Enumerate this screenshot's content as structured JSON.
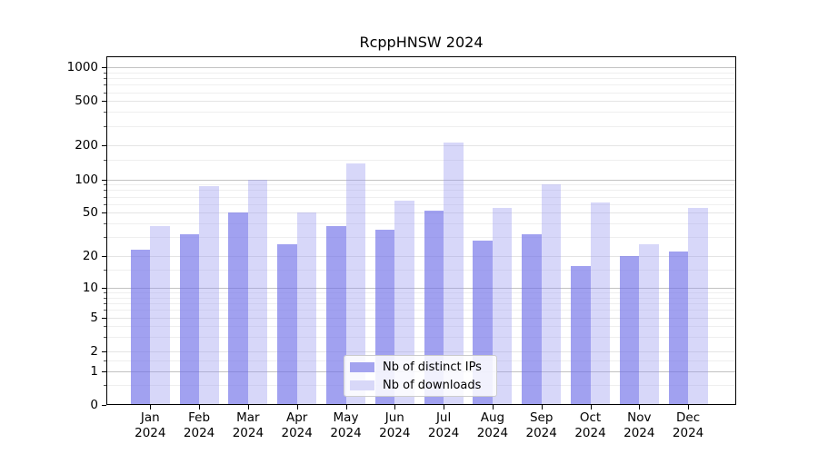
{
  "chart_data": {
    "type": "bar",
    "title": "RcppHNSW 2024",
    "scale": "log1p",
    "grid": "on",
    "legend_position": "lower center",
    "categories": [
      "Jan",
      "Feb",
      "Mar",
      "Apr",
      "May",
      "Jun",
      "Jul",
      "Aug",
      "Sep",
      "Oct",
      "Nov",
      "Dec"
    ],
    "x_sub_label": "2024",
    "series": [
      {
        "name": "Nb of distinct IPs",
        "values": [
          23,
          32,
          50,
          26,
          38,
          35,
          52,
          28,
          32,
          16,
          20,
          22
        ],
        "bar_color": "rgba(110,110,232,0.65)",
        "legend_color": "#a3a3ef"
      },
      {
        "name": "Nb of downloads",
        "values": [
          38,
          87,
          100,
          50,
          140,
          64,
          213,
          55,
          90,
          62,
          26,
          55
        ],
        "bar_color": "rgba(150,150,240,0.38)",
        "legend_color": "#d8d8f8"
      }
    ],
    "y_ticks": [
      0,
      1,
      2,
      5,
      10,
      20,
      50,
      100,
      200,
      500,
      1000
    ],
    "y_mid_ticks": [
      2,
      5,
      20,
      50,
      200,
      500
    ],
    "y_major_gridlines": [
      1,
      10,
      100,
      1000
    ],
    "y_minor_ticks": [
      0.5,
      1.5,
      3,
      4,
      6,
      7,
      8,
      9,
      15,
      30,
      40,
      60,
      70,
      80,
      90,
      150,
      300,
      400,
      600,
      700,
      800,
      900
    ],
    "ylim": [
      0,
      1250
    ]
  },
  "colors": {
    "grid_major": "#c2c2c2",
    "grid_mid": "#e4e4e4",
    "grid_minor": "#efefef",
    "axis": "#000000",
    "text": "#000000",
    "background": "#ffffff"
  }
}
